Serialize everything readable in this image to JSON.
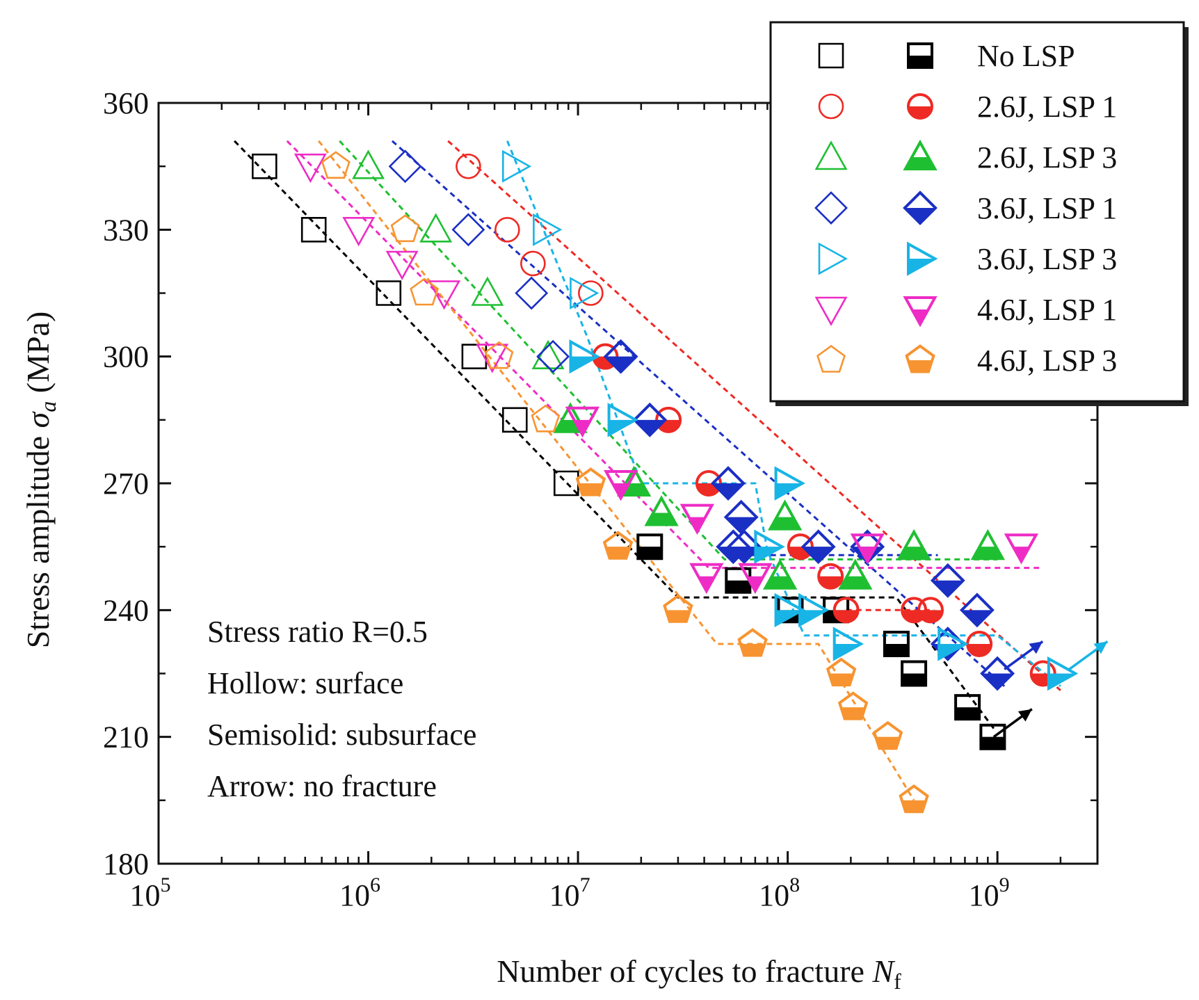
{
  "chart_data": {
    "type": "scatter",
    "title": "",
    "xlabel": "Number of cycles to fracture N_f",
    "xlabel_main": "Number of cycles to fracture ",
    "xlabel_italic": "N",
    "xlabel_sub": "f",
    "ylabel": "Stress amplitude σ_a (MPa)",
    "ylabel_main": "Stress amplitude ",
    "ylabel_italic": "σ",
    "ylabel_sub": "a",
    "ylabel_unit": " (MPa)",
    "xscale": "log",
    "xlim": [
      100000,
      3000000000
    ],
    "ylim": [
      180,
      360
    ],
    "yticks": [
      {
        "value": 180,
        "label": "180"
      },
      {
        "value": 210,
        "label": "210"
      },
      {
        "value": 240,
        "label": "240"
      },
      {
        "value": 270,
        "label": "270"
      },
      {
        "value": 300,
        "label": "300"
      },
      {
        "value": 330,
        "label": "330"
      },
      {
        "value": 360,
        "label": "360"
      }
    ],
    "xticks": [
      {
        "value": 100000,
        "base": "10",
        "exp": "5"
      },
      {
        "value": 1000000,
        "base": "10",
        "exp": "6"
      },
      {
        "value": 10000000,
        "base": "10",
        "exp": "7"
      },
      {
        "value": 100000000,
        "base": "10",
        "exp": "8"
      },
      {
        "value": 1000000000,
        "base": "10",
        "exp": "9"
      }
    ],
    "annotations": [
      "Stress ratio R=0.5",
      "Hollow: surface",
      "Semisolid: subsurface",
      "Arrow: no fracture"
    ],
    "legend_position": "top-right",
    "series": [
      {
        "name": "No LSP",
        "color": "#000000",
        "marker": "square",
        "hollow": [
          [
            320000,
            345
          ],
          [
            550000,
            330
          ],
          [
            1250000,
            315
          ],
          [
            3200000,
            300
          ],
          [
            5000000,
            285
          ],
          [
            8800000,
            270
          ]
        ],
        "semisolid": [
          [
            22000000,
            255
          ],
          [
            58000000,
            247
          ],
          [
            103000000,
            240
          ],
          [
            170000000,
            240
          ],
          [
            330000000,
            232
          ],
          [
            400000000,
            225
          ],
          [
            720000000,
            217
          ],
          [
            950000000,
            210
          ]
        ],
        "fit": [
          [
            230000,
            351
          ],
          [
            30000000,
            243
          ],
          [
            330000000,
            243
          ],
          [
            960000000,
            212
          ]
        ],
        "arrows": [
          [
            960000000,
            210
          ]
        ]
      },
      {
        "name": "2.6J, LSP 1",
        "color": "#ee2a24",
        "marker": "circle",
        "hollow": [
          [
            3000000,
            345
          ],
          [
            4600000,
            330
          ],
          [
            6100000,
            322
          ],
          [
            11500000,
            315
          ]
        ],
        "semisolid": [
          [
            13500000,
            300
          ],
          [
            27000000,
            285
          ],
          [
            42000000,
            270
          ],
          [
            115000000,
            255
          ],
          [
            160000000,
            248
          ],
          [
            190000000,
            240
          ],
          [
            400000000,
            240
          ],
          [
            480000000,
            240
          ],
          [
            820000000,
            232
          ],
          [
            1650000000,
            225
          ]
        ],
        "fit": [
          [
            2400000,
            351
          ],
          [
            2000000000,
            221
          ]
        ],
        "trend": [
          [
            190000000,
            240
          ],
          [
            500000000,
            240
          ]
        ],
        "arrows": []
      },
      {
        "name": "2.6J, LSP 3",
        "color": "#1fbf32",
        "marker": "triangle-up",
        "hollow": [
          [
            1000000,
            345
          ],
          [
            2100000,
            330
          ],
          [
            3700000,
            315
          ],
          [
            7200000,
            300
          ]
        ],
        "semisolid": [
          [
            9200000,
            285
          ],
          [
            18500000,
            270
          ],
          [
            25000000,
            263
          ],
          [
            92000000,
            248
          ],
          [
            97000000,
            262
          ],
          [
            210000000,
            248
          ],
          [
            400000000,
            255
          ],
          [
            900000000,
            255
          ]
        ],
        "fit": [
          [
            730000,
            351
          ],
          [
            50000000,
            252
          ],
          [
            1000000000,
            252
          ]
        ],
        "arrows": []
      },
      {
        "name": "3.6J, LSP 1",
        "color": "#1a2fc4",
        "marker": "diamond",
        "hollow": [
          [
            1500000,
            345
          ],
          [
            3000000,
            330
          ],
          [
            6000000,
            315
          ],
          [
            7600000,
            300
          ]
        ],
        "semisolid": [
          [
            16000000,
            300
          ],
          [
            22000000,
            285
          ],
          [
            52000000,
            270
          ],
          [
            60000000,
            262
          ],
          [
            55000000,
            255
          ],
          [
            62000000,
            255
          ],
          [
            140000000,
            255
          ],
          [
            240000000,
            255
          ],
          [
            580000000,
            247
          ],
          [
            800000000,
            240
          ],
          [
            580000000,
            232
          ],
          [
            1000000000,
            225
          ]
        ],
        "fit": [
          [
            1300000,
            351
          ],
          [
            1080000000,
            222
          ]
        ],
        "trend": [
          [
            60000000,
            253
          ],
          [
            520000000,
            253
          ]
        ],
        "arrows": [
          [
            1080000000,
            226
          ]
        ]
      },
      {
        "name": "3.6J, LSP 3",
        "color": "#18b4e6",
        "marker": "triangle-right",
        "hollow": [
          [
            5000000,
            345
          ],
          [
            7000000,
            330
          ],
          [
            10500000,
            315
          ]
        ],
        "semisolid": [
          [
            10500000,
            300
          ],
          [
            16000000,
            285
          ],
          [
            100000000,
            270
          ],
          [
            80000000,
            255
          ],
          [
            100000000,
            240
          ],
          [
            130000000,
            240
          ],
          [
            190000000,
            232
          ],
          [
            600000000,
            232
          ],
          [
            2000000000,
            225
          ]
        ],
        "fit": [
          [
            4600000,
            351
          ],
          [
            11000000,
            305
          ],
          [
            20000000,
            270
          ],
          [
            70000000,
            270
          ],
          [
            80000000,
            254
          ],
          [
            120000000,
            234
          ],
          [
            1000000000,
            234
          ],
          [
            2000000000,
            222
          ]
        ],
        "arrows": [
          [
            2200000000,
            226
          ]
        ]
      },
      {
        "name": "4.6J, LSP 1",
        "color": "#ee2cc5",
        "marker": "triangle-down",
        "hollow": [
          [
            530000,
            345
          ],
          [
            900000,
            330
          ],
          [
            1450000,
            322
          ],
          [
            2300000,
            315
          ],
          [
            3900000,
            300
          ]
        ],
        "semisolid": [
          [
            10500000,
            285
          ],
          [
            16000000,
            270
          ],
          [
            37000000,
            262
          ],
          [
            41000000,
            248
          ],
          [
            70000000,
            248
          ],
          [
            240000000,
            255
          ],
          [
            1300000000,
            255
          ]
        ],
        "fit": [
          [
            410000,
            351
          ],
          [
            42000000,
            250
          ],
          [
            1600000000,
            250
          ]
        ],
        "arrows": []
      },
      {
        "name": "4.6J, LSP 3",
        "color": "#f79431",
        "marker": "pentagon",
        "hollow": [
          [
            700000,
            345
          ],
          [
            1500000,
            330
          ],
          [
            1850000,
            315
          ],
          [
            4200000,
            300
          ],
          [
            7000000,
            285
          ]
        ],
        "semisolid": [
          [
            11500000,
            270
          ],
          [
            15500000,
            255
          ],
          [
            30000000,
            240
          ],
          [
            68000000,
            232
          ],
          [
            180000000,
            225
          ],
          [
            205000000,
            217
          ],
          [
            300000000,
            210
          ],
          [
            400000000,
            195
          ]
        ],
        "fit": [
          [
            580000,
            351
          ],
          [
            46000000,
            232
          ],
          [
            140000000,
            232
          ],
          [
            400000000,
            195
          ]
        ],
        "arrows": []
      }
    ]
  }
}
